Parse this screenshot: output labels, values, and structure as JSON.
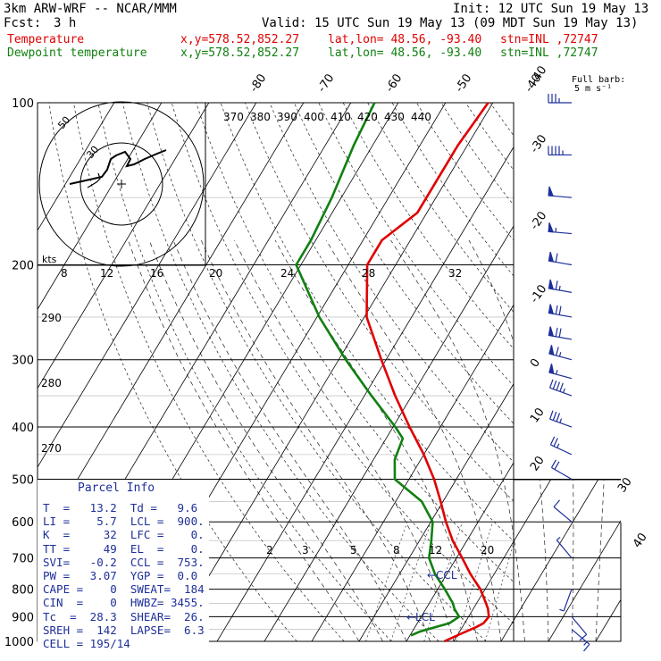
{
  "header": {
    "model": "3km ARW-WRF -- NCAR/MMM",
    "init": "Init: 12 UTC Sun 19 May 13",
    "fcst_label": "Fcst:",
    "fcst_value": "3 h",
    "valid": "Valid: 15 UTC Sun 19 May 13 (09 MDT Sun 19 May 13)",
    "temp_label": "Temperature",
    "dew_label": "Dewpoint temperature",
    "xy": "x,y=578.52,852.27",
    "latlon": "lat,lon= 48.56, -93.40",
    "stn": "stn=INL ,72747"
  },
  "colors": {
    "temperature": "#e00000",
    "dewpoint": "#108010",
    "text_blue": "#1e2f9a"
  },
  "barb_legend": {
    "line1": "Full barb:",
    "line2": "5 m s⁻¹"
  },
  "hodograph": {
    "label_ring1": "50",
    "label_ring2": "30",
    "unit": "kts"
  },
  "chart_data": {
    "type": "line",
    "title": "",
    "y_axis_pressure_hPa": [
      100,
      200,
      300,
      400,
      500,
      600,
      700,
      800,
      900,
      1000
    ],
    "isotherm_labels_C": [
      "-40",
      "-30",
      "-20",
      "-10",
      "0",
      "10",
      "20",
      "30",
      "40"
    ],
    "top_isotherm_labels_C": [
      "-80",
      "-70",
      "-60",
      "-50",
      "-40"
    ],
    "theta_e_labels_K": [
      "370",
      "380",
      "390",
      "400",
      "410",
      "420",
      "430",
      "440"
    ],
    "mixing_ratio_labels": [
      "2",
      "3",
      "5",
      "8",
      "12",
      "20"
    ],
    "mixing_ratio_labels_upper": [
      "8",
      "12",
      "16",
      "20",
      "24",
      "28",
      "32"
    ],
    "dry_adiabat_labels": [
      "290",
      "280",
      "270"
    ],
    "series": [
      {
        "name": "Temperature",
        "points": [
          [
            1000,
            8.0
          ],
          [
            970,
            10.4
          ],
          [
            940,
            13.0
          ],
          [
            925,
            14.0
          ],
          [
            900,
            14.3
          ],
          [
            870,
            13.1
          ],
          [
            850,
            12.0
          ],
          [
            800,
            9.0
          ],
          [
            750,
            5.0
          ],
          [
            700,
            1.2
          ],
          [
            650,
            -3.0
          ],
          [
            600,
            -6.8
          ],
          [
            550,
            -10.5
          ],
          [
            500,
            -14.7
          ],
          [
            450,
            -20.0
          ],
          [
            400,
            -26.5
          ],
          [
            350,
            -33.5
          ],
          [
            300,
            -41.0
          ],
          [
            250,
            -49.5
          ],
          [
            200,
            -56.0
          ],
          [
            180,
            -56.0
          ],
          [
            160,
            -52.0
          ],
          [
            120,
            -52.0
          ],
          [
            100,
            -51.0
          ]
        ]
      },
      {
        "name": "Dewpoint temperature",
        "points": [
          [
            975,
            0.2
          ],
          [
            960,
            1.5
          ],
          [
            940,
            4.5
          ],
          [
            925,
            6.8
          ],
          [
            900,
            8.0
          ],
          [
            870,
            6.0
          ],
          [
            850,
            5.0
          ],
          [
            800,
            1.5
          ],
          [
            750,
            -2.5
          ],
          [
            700,
            -5.8
          ],
          [
            650,
            -7.5
          ],
          [
            600,
            -9.6
          ],
          [
            550,
            -14.5
          ],
          [
            520,
            -19.5
          ],
          [
            500,
            -23.0
          ],
          [
            460,
            -25.5
          ],
          [
            420,
            -26.5
          ],
          [
            400,
            -29.5
          ],
          [
            350,
            -38.5
          ],
          [
            300,
            -48.5
          ],
          [
            250,
            -59.5
          ],
          [
            200,
            -71.0
          ],
          [
            180,
            -71.0
          ],
          [
            150,
            -72.0
          ],
          [
            120,
            -74.0
          ],
          [
            100,
            -75.0
          ]
        ]
      }
    ],
    "annotations": [
      "LCL",
      "CCL"
    ],
    "wind_barbs": [
      {
        "p": 100,
        "spd_kt": 35,
        "dir": 270
      },
      {
        "p": 125,
        "spd_kt": 45,
        "dir": 270
      },
      {
        "p": 150,
        "spd_kt": 50,
        "dir": 275
      },
      {
        "p": 175,
        "spd_kt": 55,
        "dir": 275
      },
      {
        "p": 200,
        "spd_kt": 60,
        "dir": 280
      },
      {
        "p": 225,
        "spd_kt": 65,
        "dir": 280
      },
      {
        "p": 250,
        "spd_kt": 70,
        "dir": 280
      },
      {
        "p": 275,
        "spd_kt": 70,
        "dir": 280
      },
      {
        "p": 300,
        "spd_kt": 65,
        "dir": 285
      },
      {
        "p": 325,
        "spd_kt": 55,
        "dir": 285
      },
      {
        "p": 350,
        "spd_kt": 45,
        "dir": 290
      },
      {
        "p": 400,
        "spd_kt": 35,
        "dir": 290
      },
      {
        "p": 450,
        "spd_kt": 25,
        "dir": 295
      },
      {
        "p": 500,
        "spd_kt": 20,
        "dir": 300
      },
      {
        "p": 600,
        "spd_kt": 10,
        "dir": 310
      },
      {
        "p": 700,
        "spd_kt": 5,
        "dir": 320
      },
      {
        "p": 800,
        "spd_kt": 5,
        "dir": 200
      },
      {
        "p": 900,
        "spd_kt": 10,
        "dir": 140
      },
      {
        "p": 950,
        "spd_kt": 15,
        "dir": 130
      }
    ]
  },
  "parcel_info": {
    "title": "Parcel Info",
    "rows": [
      "T  =   13.2  Td =   9.6",
      "LI =    5.7  LCL =  900.",
      "K  =     32  LFC =    0.",
      "TT =     49  EL  =    0.",
      "SVI=   -0.2  CCL =  753.",
      "PW =   3.07  YGP =  0.0",
      "CAPE =    0  SWEAT=  184",
      "CIN  =    0  HWBZ= 3455.",
      "Tc  =  28.3  SHEAR=  26.",
      "SREH =  142  LAPSE=  6.3",
      "CELL = 195/14"
    ]
  }
}
